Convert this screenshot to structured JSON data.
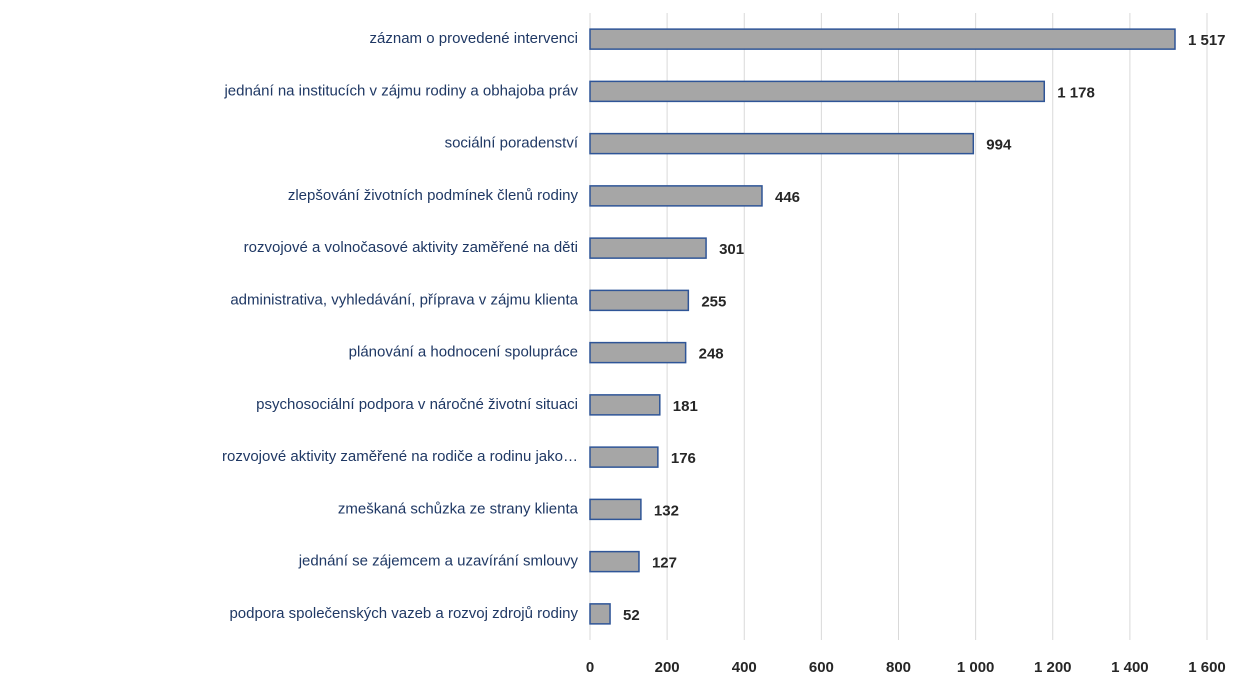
{
  "chart_data": {
    "type": "bar",
    "orientation": "horizontal",
    "categories": [
      "záznam o provedené intervenci",
      "jednání na institucích v zájmu rodiny a obhajoba práv",
      "sociální poradenství",
      "zlepšování životních podmínek členů rodiny",
      "rozvojové a volnočasové aktivity zaměřené na děti",
      "administrativa, vyhledávání, příprava v zájmu klienta",
      "plánování a hodnocení spolupráce",
      "psychosociální podpora v náročné životní situaci",
      "rozvojové aktivity zaměřené na rodiče a rodinu jako…",
      "zmeškaná schůzka ze strany klienta",
      "jednání se zájemcem a uzavírání smlouvy",
      "podpora společenských vazeb a rozvoj zdrojů rodiny"
    ],
    "values": [
      1517,
      1178,
      994,
      446,
      301,
      255,
      248,
      181,
      176,
      132,
      127,
      52
    ],
    "value_labels": [
      "1 517",
      "1 178",
      "994",
      "446",
      "301",
      "255",
      "248",
      "181",
      "176",
      "132",
      "127",
      "52"
    ],
    "color": "#a6a6a6",
    "edge_color": "#2f5597",
    "xlim": [
      0,
      1600
    ],
    "xticks": [
      0,
      200,
      400,
      600,
      800,
      {
        "value": 1000,
        "label": "1 000"
      },
      {
        "value": 1200,
        "label": "1 200"
      },
      {
        "value": 1400,
        "label": "1 400"
      },
      {
        "value": 1600,
        "label": "1 600"
      }
    ],
    "grid": true
  }
}
